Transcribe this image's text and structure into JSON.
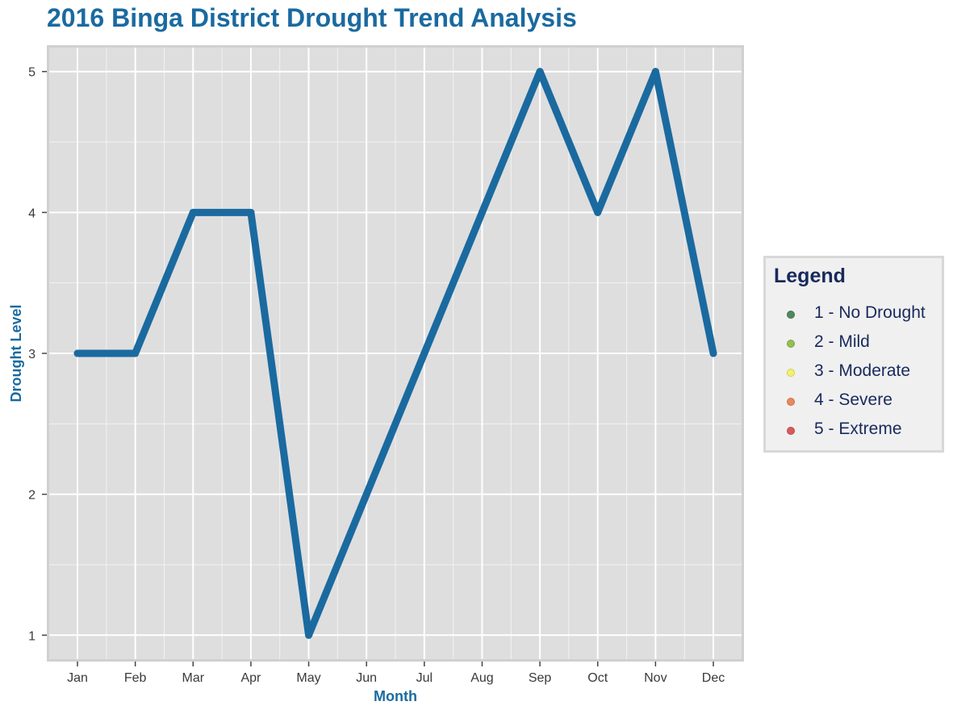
{
  "chart_data": {
    "type": "line",
    "title": "2016 Binga District Drought Trend Analysis",
    "xlabel": "Month",
    "ylabel": "Drought Level",
    "categories": [
      "Jan",
      "Feb",
      "Mar",
      "Apr",
      "May",
      "Jun",
      "Jul",
      "Aug",
      "Sep",
      "Oct",
      "Nov",
      "Dec"
    ],
    "series": [
      {
        "values": [
          3,
          3,
          4,
          4,
          1,
          2,
          3,
          4,
          5,
          4,
          5,
          3
        ],
        "color": "#1a6aa0"
      }
    ],
    "ylim": [
      0.83,
      5.17
    ],
    "yticks": [
      "1",
      "2",
      "3",
      "4",
      "5"
    ],
    "grid": true,
    "panel_background": "#dedede",
    "legend": {
      "title": "Legend",
      "position": "right",
      "items": [
        {
          "label": "1 - No Drought",
          "color": "#4e8a5c"
        },
        {
          "label": "2 - Mild",
          "color": "#97bf4f"
        },
        {
          "label": "3 - Moderate",
          "color": "#f5f26a"
        },
        {
          "label": "4 - Severe",
          "color": "#e8895a"
        },
        {
          "label": "5 - Extreme",
          "color": "#d85a5a"
        }
      ]
    }
  }
}
